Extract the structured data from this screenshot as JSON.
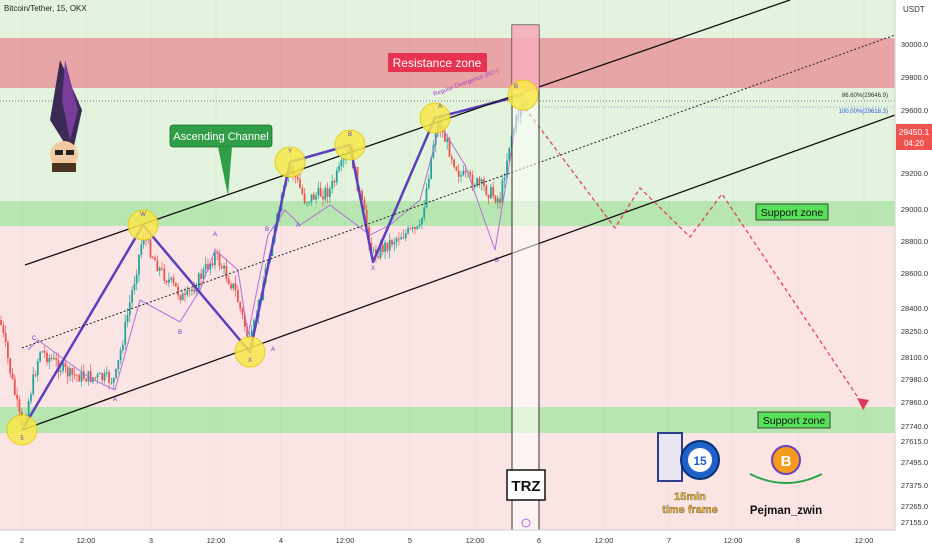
{
  "header": {
    "symbol_title": "Bitcoin/Tether, 15, OKX",
    "currency": "USDT"
  },
  "annotations": {
    "resistance": "Resistance zone",
    "support_upper": "Support zone",
    "support_lower": "Support zone",
    "channel": "Ascending Channel",
    "trz": "TRZ",
    "divergence": "Regular Divergence (RD-)",
    "timeframe_line1": "15min",
    "timeframe_line2": "time frame",
    "timeframe_badge": "15",
    "author": "Pejman_zwin",
    "author_logo": "B",
    "fib_upper": "86.60%(29646.9)",
    "fib_lower": "100.00%(29618.3)"
  },
  "colors": {
    "resistance_fill": "#e8a5a5",
    "support_fill": "#b8e6b0",
    "upper_bg": "#e3f3dd",
    "lower_bg": "#fbe4e4",
    "wave": "#5b3fbf",
    "wave_point": "#f7e84a",
    "candle_up": "#26a69a",
    "candle_down": "#ef5350",
    "projection": "#e0385a",
    "label_green": "#27a844",
    "label_red": "#e6334f"
  },
  "price_badge": {
    "price": "29450.1",
    "countdown": "04:20"
  },
  "chart_data": {
    "type": "candlestick",
    "y_axis": {
      "unit": "USDT",
      "ticks": [
        30000.0,
        29800.0,
        29600.0,
        29400.0,
        29200.0,
        29000.0,
        28800.0,
        28600.0,
        28400.0,
        28250.0,
        28100.0,
        27980.0,
        27860.0,
        27740.0,
        27615.0,
        27495.0,
        27375.0,
        27265.0,
        27155.0
      ]
    },
    "x_axis": {
      "ticks": [
        "2",
        "12:00",
        "3",
        "12:00",
        "4",
        "12:00",
        "5",
        "12:00",
        "6",
        "12:00",
        "7",
        "12:00",
        "8",
        "12:00"
      ]
    },
    "zones": [
      {
        "name": "Resistance zone",
        "from": 29740,
        "to": 30050
      },
      {
        "name": "Support zone",
        "from": 28910,
        "to": 29060
      },
      {
        "name": "Support zone",
        "from": 27680,
        "to": 27790
      }
    ],
    "wave_labels": [
      "5",
      "W",
      "X",
      "Y",
      "B",
      "X",
      "A",
      "B",
      "C",
      "A",
      "B",
      "A",
      "B",
      "A",
      "A",
      "B",
      "B"
    ]
  }
}
